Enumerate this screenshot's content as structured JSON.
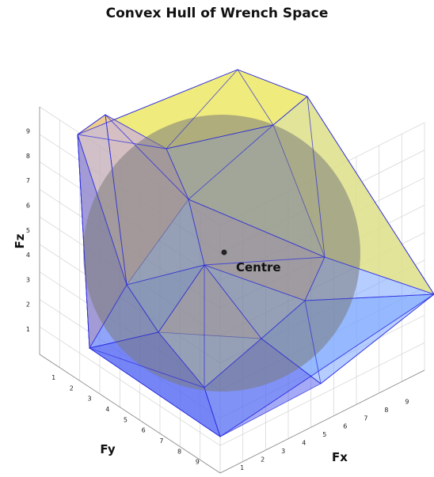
{
  "chart_data": {
    "type": "3d-convex-hull",
    "title": "Convex Hull of Wrench Space",
    "xlabel": "Fx",
    "ylabel": "Fy",
    "zlabel": "Fz",
    "x_ticks": [
      "1",
      "2",
      "3",
      "4",
      "5",
      "6",
      "7",
      "8",
      "9"
    ],
    "y_ticks": [
      "1",
      "2",
      "3",
      "4",
      "5",
      "6",
      "7",
      "8",
      "9"
    ],
    "z_ticks": [
      "1",
      "2",
      "3",
      "4",
      "5",
      "6",
      "7",
      "8",
      "9"
    ],
    "annotation": "Centre",
    "grid": true,
    "colors": {
      "hull_top": "#f5ee6e",
      "hull_side": "#e9b59a",
      "hull_blue": "#7aa6ff",
      "hull_dark_blue": "#4a55ee",
      "hull_edges": "#2a2ae0",
      "sphere": "#7a7a7a",
      "centre_point": "#222222"
    }
  }
}
